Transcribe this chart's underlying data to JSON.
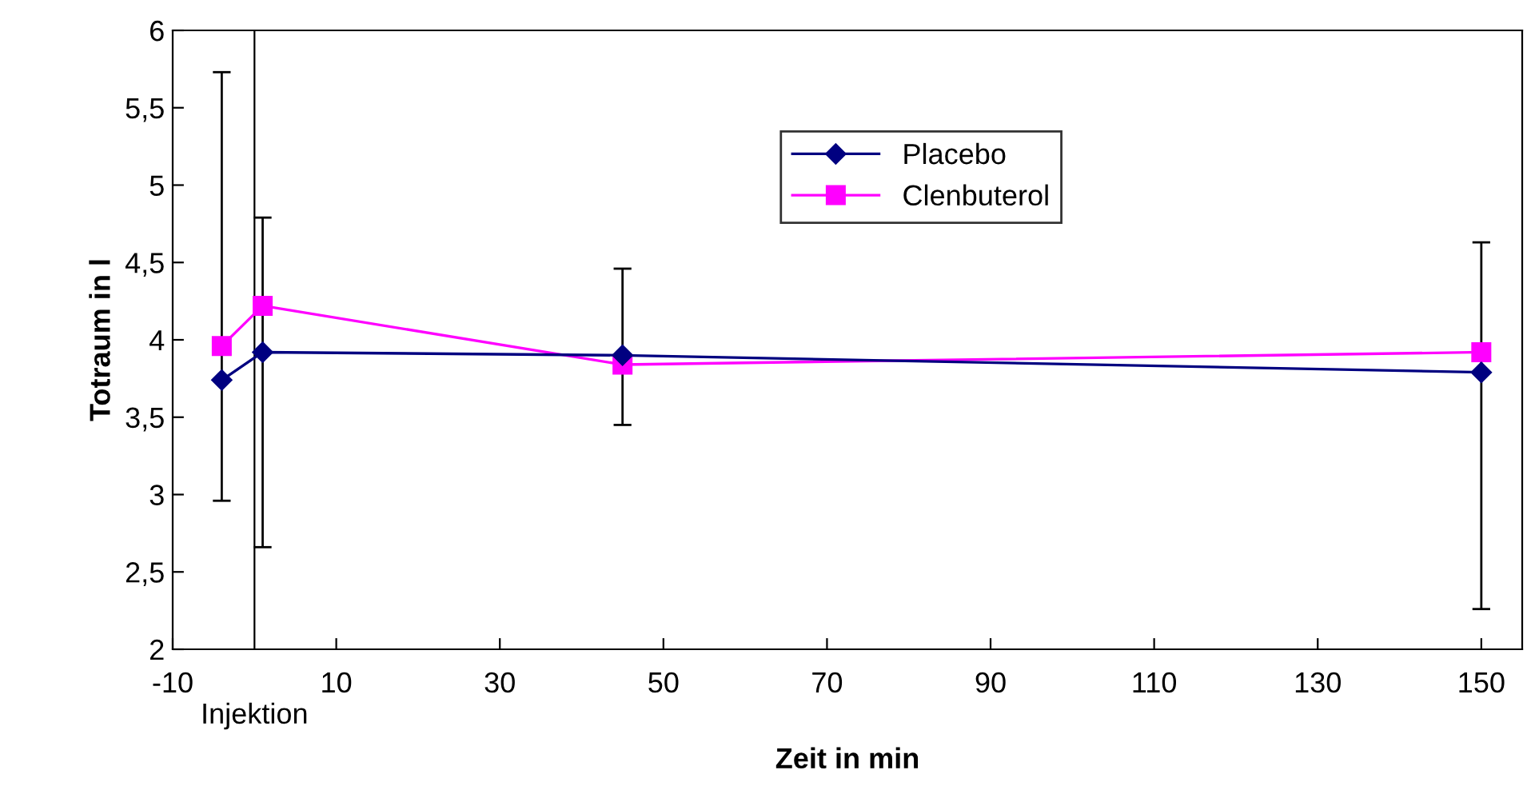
{
  "chart_data": {
    "type": "line",
    "xlabel": "Zeit in min",
    "ylabel": "Totraum in l",
    "x": [
      -4,
      1,
      45,
      150
    ],
    "series": [
      {
        "name": "Placebo",
        "color": "#000080",
        "marker": "diamond",
        "values": [
          3.74,
          3.92,
          3.9,
          3.79
        ],
        "errors": [
          [
            2.96,
            5.73
          ],
          [
            2.66,
            4.79
          ],
          [
            3.45,
            4.46
          ],
          [
            2.26,
            4.63
          ]
        ]
      },
      {
        "name": "Clenbuterol",
        "color": "#ff00ff",
        "marker": "square",
        "values": [
          3.96,
          4.22,
          3.84,
          3.92
        ]
      }
    ],
    "xlim": [
      -10,
      155
    ],
    "xticks": [
      {
        "value": -10,
        "label": "-10"
      },
      10,
      30,
      50,
      70,
      90,
      110,
      130,
      150
    ],
    "ylim": [
      2,
      6
    ],
    "yticks": [
      2,
      {
        "value": 2.5,
        "label": "2,5"
      },
      3,
      {
        "value": 3.5,
        "label": "3,5"
      },
      4,
      {
        "value": 4.5,
        "label": "4,5"
      },
      5,
      {
        "value": 5.5,
        "label": "5,5"
      },
      6
    ],
    "ref_lines": [
      {
        "axis": "x",
        "value": 0,
        "label": "Injektion",
        "color": "#000000"
      }
    ],
    "grid": false,
    "legend": "top"
  }
}
